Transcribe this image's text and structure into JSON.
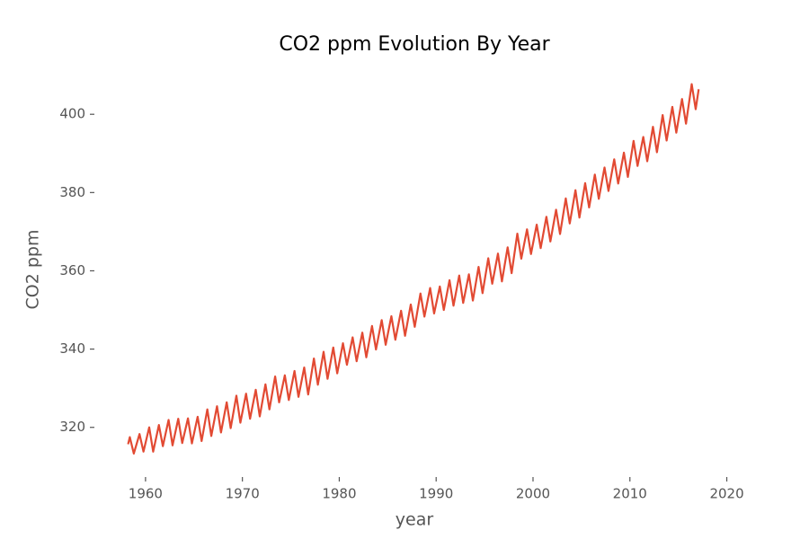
{
  "chart_data": {
    "type": "line",
    "title": "CO2 ppm Evolution By Year",
    "xlabel": "year",
    "ylabel": "CO2 ppm",
    "grid": false,
    "xlim": [
      1955,
      2020.6
    ],
    "xticks": [
      1960,
      1970,
      1980,
      1990,
      2000,
      2010,
      2020
    ],
    "ylim": [
      308,
      409
    ],
    "yticks": [
      320,
      340,
      360,
      380,
      400
    ],
    "x": [
      1958.2,
      1958.38,
      1958.79,
      1959.38,
      1959.79,
      1960.38,
      1960.79,
      1961.38,
      1961.79,
      1962.38,
      1962.79,
      1963.38,
      1963.79,
      1964.38,
      1964.79,
      1965.38,
      1965.79,
      1966.38,
      1966.79,
      1967.38,
      1967.79,
      1968.38,
      1968.79,
      1969.38,
      1969.79,
      1970.38,
      1970.79,
      1971.38,
      1971.79,
      1972.38,
      1972.79,
      1973.38,
      1973.79,
      1974.38,
      1974.79,
      1975.38,
      1975.79,
      1976.38,
      1976.79,
      1977.38,
      1977.79,
      1978.38,
      1978.79,
      1979.38,
      1979.79,
      1980.38,
      1980.79,
      1981.38,
      1981.79,
      1982.38,
      1982.79,
      1983.38,
      1983.79,
      1984.38,
      1984.79,
      1985.38,
      1985.79,
      1986.38,
      1986.79,
      1987.38,
      1987.79,
      1988.38,
      1988.79,
      1989.38,
      1989.79,
      1990.38,
      1990.79,
      1991.38,
      1991.79,
      1992.38,
      1992.79,
      1993.38,
      1993.79,
      1994.38,
      1994.79,
      1995.38,
      1995.79,
      1996.38,
      1996.79,
      1997.38,
      1997.79,
      1998.38,
      1998.79,
      1999.38,
      1999.79,
      2000.38,
      2000.79,
      2001.38,
      2001.79,
      2002.38,
      2002.79,
      2003.38,
      2003.79,
      2004.38,
      2004.79,
      2005.38,
      2005.79,
      2006.38,
      2006.79,
      2007.38,
      2007.79,
      2008.38,
      2008.79,
      2009.38,
      2009.79,
      2010.38,
      2010.79,
      2011.38,
      2011.79,
      2012.38,
      2012.79,
      2013.38,
      2013.79,
      2014.38,
      2014.79,
      2015.38,
      2015.79,
      2016.38,
      2016.79,
      2017.1
    ],
    "series": [
      {
        "color": "#e24a33",
        "values": [
          315.7,
          317.5,
          313.3,
          318.3,
          313.8,
          320.0,
          313.8,
          320.6,
          315.2,
          321.9,
          315.4,
          322.2,
          316.0,
          322.3,
          315.9,
          322.7,
          316.5,
          324.6,
          317.8,
          325.4,
          318.7,
          326.4,
          319.8,
          328.1,
          321.2,
          328.6,
          322.2,
          329.6,
          322.8,
          331.0,
          324.6,
          333.0,
          326.4,
          333.3,
          327.0,
          334.4,
          327.8,
          335.3,
          328.4,
          337.6,
          330.9,
          339.3,
          332.4,
          340.4,
          333.8,
          341.5,
          336.0,
          343.0,
          336.9,
          344.2,
          337.9,
          345.9,
          339.9,
          347.4,
          341.1,
          348.4,
          342.4,
          349.8,
          343.4,
          351.4,
          345.7,
          354.2,
          348.3,
          355.6,
          349.1,
          356.0,
          350.0,
          357.6,
          351.1,
          358.8,
          351.8,
          359.1,
          352.4,
          361.0,
          354.3,
          363.2,
          356.7,
          364.4,
          357.3,
          366.0,
          359.4,
          369.5,
          363.1,
          370.6,
          364.3,
          371.8,
          365.8,
          373.8,
          367.5,
          375.6,
          369.4,
          378.5,
          372.1,
          380.6,
          373.6,
          382.4,
          376.2,
          384.6,
          378.4,
          386.4,
          380.4,
          388.5,
          382.3,
          390.2,
          384.0,
          393.2,
          386.8,
          394.2,
          388.0,
          396.8,
          390.3,
          399.8,
          393.3,
          401.9,
          395.3,
          403.9,
          397.6,
          407.7,
          401.3,
          406.4
        ]
      }
    ]
  }
}
